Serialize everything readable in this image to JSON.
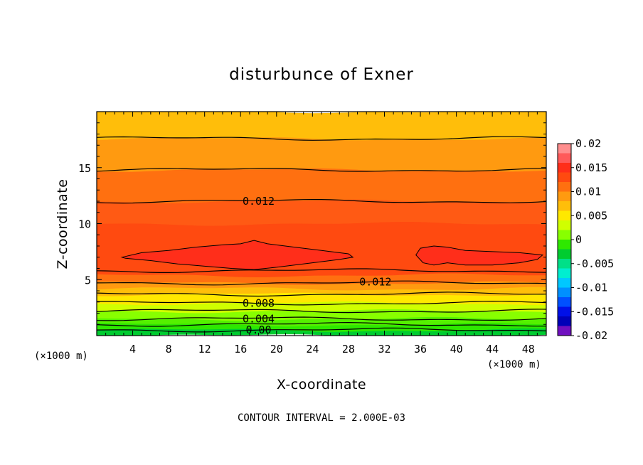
{
  "chart_data": {
    "type": "heatmap",
    "title": "disturbunce of Exner",
    "xlabel": "X-coordinate",
    "ylabel": "Z-coordinate",
    "x_unit_left": "(×1000 m)",
    "x_unit_right": "(×1000 m)",
    "footer": "CONTOUR INTERVAL = 2.000E-03",
    "xlim": [
      0,
      50
    ],
    "ylim": [
      0,
      20
    ],
    "xticks": [
      4,
      8,
      12,
      16,
      20,
      24,
      28,
      32,
      36,
      40,
      44,
      48
    ],
    "yticks": [
      5,
      10,
      15
    ],
    "colorbar": {
      "range": [
        -0.02,
        0.02
      ],
      "labels": [
        "0.02",
        "0.015",
        "0.01",
        "0.005",
        "0",
        "-0.005",
        "-0.01",
        "-0.015",
        "-0.02"
      ],
      "colors": [
        "#ff8e8e",
        "#ff5a5a",
        "#ff2e1a",
        "#ff4a10",
        "#ff7010",
        "#ff9a10",
        "#ffbe0a",
        "#ffe800",
        "#d0ff00",
        "#88ff00",
        "#2ee800",
        "#00cc30",
        "#00e088",
        "#00eed0",
        "#00c8ff",
        "#0090ff",
        "#0050ff",
        "#0010e8",
        "#0000b8",
        "#7010c0"
      ]
    },
    "contour_labels": [
      {
        "text": "0.012",
        "x": 18,
        "y": 12
      },
      {
        "text": "0.012",
        "x": 31,
        "y": 4.8
      },
      {
        "text": "0.008",
        "x": 18,
        "y": 2.9
      },
      {
        "text": "0.004",
        "x": 18,
        "y": 1.5
      },
      {
        "text": "0.00",
        "x": 18,
        "y": 0.5
      }
    ],
    "levels": [
      {
        "value": 0.0,
        "z": 0.5
      },
      {
        "value": 0.002,
        "z": 1.0
      },
      {
        "value": 0.004,
        "z": 1.5
      },
      {
        "value": 0.006,
        "z": 2.2
      },
      {
        "value": 0.008,
        "z": 2.9
      },
      {
        "value": 0.01,
        "z": 3.7
      },
      {
        "value": 0.012,
        "z": 4.7
      },
      {
        "value": 0.014,
        "z": 5.8
      },
      {
        "value": 0.012,
        "z": 12.0
      },
      {
        "value": 0.01,
        "z": 14.8
      },
      {
        "value": 0.008,
        "z": 17.6
      }
    ]
  }
}
